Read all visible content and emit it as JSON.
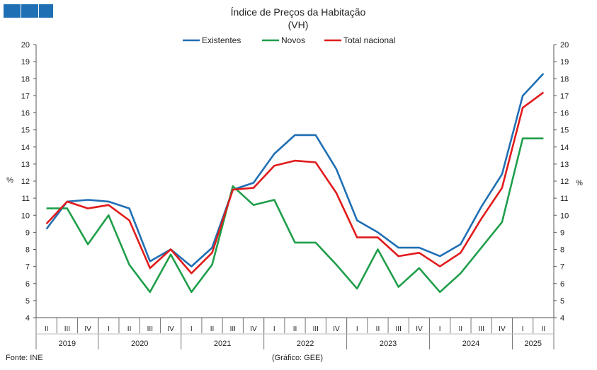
{
  "chart_data": {
    "type": "line",
    "title": "Índice de Preços da Habitação",
    "subtitle": "(VH)",
    "ylabel_left": "%",
    "ylabel_right": "%",
    "ylim": [
      4,
      20
    ],
    "yticks": [
      4,
      5,
      6,
      7,
      8,
      9,
      10,
      11,
      12,
      13,
      14,
      15,
      16,
      17,
      18,
      19,
      20
    ],
    "grid": false,
    "legend_position": "top-center",
    "quarters": [
      "II",
      "III",
      "IV",
      "I",
      "II",
      "III",
      "IV",
      "I",
      "II",
      "III",
      "IV",
      "I",
      "II",
      "III",
      "IV",
      "I",
      "II",
      "III",
      "IV",
      "I",
      "II",
      "III",
      "IV",
      "I",
      "II"
    ],
    "years": [
      {
        "label": "2019",
        "quarters": 3
      },
      {
        "label": "2020",
        "quarters": 4
      },
      {
        "label": "2021",
        "quarters": 4
      },
      {
        "label": "2022",
        "quarters": 4
      },
      {
        "label": "2023",
        "quarters": 4
      },
      {
        "label": "2024",
        "quarters": 4
      },
      {
        "label": "2025",
        "quarters": 2
      }
    ],
    "series": [
      {
        "name": "Existentes",
        "color": "#1f6fb4",
        "values": [
          9.2,
          10.8,
          10.9,
          10.8,
          10.4,
          7.3,
          8.0,
          7.0,
          8.1,
          11.5,
          11.9,
          13.6,
          14.7,
          14.7,
          12.7,
          9.7,
          9.0,
          8.1,
          8.1,
          7.6,
          8.3,
          10.5,
          12.4,
          17.0,
          18.3
        ]
      },
      {
        "name": "Novos",
        "color": "#1f9e4a",
        "values": [
          10.4,
          10.4,
          8.3,
          10.0,
          7.1,
          5.5,
          7.7,
          5.5,
          7.1,
          11.7,
          10.6,
          10.9,
          8.4,
          8.4,
          7.1,
          5.7,
          8.0,
          5.8,
          6.9,
          5.5,
          6.6,
          8.1,
          9.6,
          14.5,
          14.5
        ]
      },
      {
        "name": "Total nacional",
        "color": "#e01b1b",
        "values": [
          9.5,
          10.8,
          10.4,
          10.6,
          9.7,
          6.9,
          8.0,
          6.6,
          7.8,
          11.5,
          11.6,
          12.9,
          13.2,
          13.1,
          11.3,
          8.7,
          8.7,
          7.6,
          7.8,
          7.0,
          7.8,
          9.8,
          11.6,
          16.3,
          17.2
        ]
      }
    ]
  },
  "footer": {
    "source": "Fonte: INE",
    "credit": "(Gráfico: GEE)"
  },
  "logo": {
    "color": "#1f6fb4"
  }
}
